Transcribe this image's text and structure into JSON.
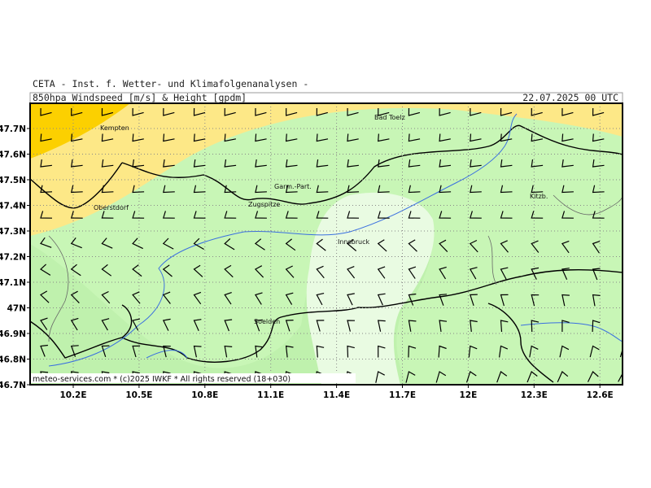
{
  "header": {
    "institute": "CETA - Inst. f. Wetter- und Klimafolgenanalysen -",
    "product": "850hpa Windspeed [m/s] & Height [gpdm]",
    "valid_time": "22.07.2025 00 UTC"
  },
  "map": {
    "lat_ticks": [
      {
        "value": 47.7,
        "label": "47.7N"
      },
      {
        "value": 47.6,
        "label": "47.6N"
      },
      {
        "value": 47.5,
        "label": "47.5N"
      },
      {
        "value": 47.4,
        "label": "47.4N"
      },
      {
        "value": 47.3,
        "label": "47.3N"
      },
      {
        "value": 47.2,
        "label": "47.2N"
      },
      {
        "value": 47.1,
        "label": "47.1N"
      },
      {
        "value": 47.0,
        "label": "47N"
      },
      {
        "value": 46.9,
        "label": "46.9N"
      },
      {
        "value": 46.8,
        "label": "46.8N"
      },
      {
        "value": 46.7,
        "label": "46.7N"
      }
    ],
    "lon_ticks": [
      {
        "value": 10.2,
        "label": "10.2E"
      },
      {
        "value": 10.5,
        "label": "10.5E"
      },
      {
        "value": 10.8,
        "label": "10.8E"
      },
      {
        "value": 11.1,
        "label": "11.1E"
      },
      {
        "value": 11.4,
        "label": "11.4E"
      },
      {
        "value": 11.7,
        "label": "11.7E"
      },
      {
        "value": 12.0,
        "label": "12E"
      },
      {
        "value": 12.3,
        "label": "12.3E"
      },
      {
        "value": 12.6,
        "label": "12.6E"
      }
    ],
    "places": [
      "Kempten",
      "Bad Toelz",
      "Garm.-Part.",
      "Zugspitze",
      "Oberstdorf",
      "Innsbruck",
      "Kitzb.",
      "Soelden"
    ]
  },
  "footer": "meteo-services.com * (c)2025 IWKF * All rights reserved (18+030)"
}
